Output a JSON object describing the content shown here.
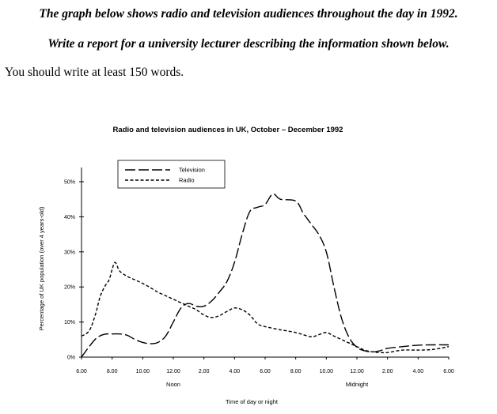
{
  "task": {
    "line1": "The graph below shows radio and television audiences throughout the day in 1992.",
    "line2": "Write a report for a university lecturer describing the information shown below.",
    "word_count": "You should write at least 150 words."
  },
  "chart_data": {
    "type": "line",
    "title": "Radio and television audiences in UK, October – December 1992",
    "xlabel": "Time of day or night",
    "ylabel": "Percentage of UK population (over 4 years-old)",
    "x_ticks": [
      "6.00",
      "8.00",
      "10.00",
      "12.00",
      "2.00",
      "4.00",
      "6.00",
      "8.00",
      "10.00",
      "12.00",
      "2.00",
      "4.00",
      "6.00"
    ],
    "x_sublabels": [
      {
        "label": "Noon",
        "at": "12.00 noon"
      },
      {
        "label": "Midnight",
        "at": "12.00 midnight"
      }
    ],
    "xlim": [
      0,
      24
    ],
    "y_ticks": [
      "0%",
      "10%",
      "20%",
      "30%",
      "40%",
      "50%"
    ],
    "ylim": [
      0,
      50
    ],
    "x_units": "hours after 6.00 am",
    "legend": {
      "placement": "top-left",
      "entries": [
        "Television",
        "Radio"
      ]
    },
    "series": [
      {
        "name": "Television",
        "style": "long-dash",
        "points": [
          [
            0,
            0
          ],
          [
            0.5,
            3
          ],
          [
            1,
            5.5
          ],
          [
            1.5,
            6.5
          ],
          [
            2,
            6.6
          ],
          [
            2.5,
            6.6
          ],
          [
            3,
            6.2
          ],
          [
            3.5,
            5
          ],
          [
            4,
            4.2
          ],
          [
            4.5,
            3.8
          ],
          [
            5,
            4.2
          ],
          [
            5.5,
            6
          ],
          [
            6,
            10
          ],
          [
            6.5,
            14
          ],
          [
            7,
            15.3
          ],
          [
            7.5,
            14.5
          ],
          [
            8,
            14.5
          ],
          [
            8.5,
            16
          ],
          [
            9,
            18.5
          ],
          [
            9.5,
            21.5
          ],
          [
            10,
            27
          ],
          [
            10.5,
            35
          ],
          [
            11,
            41.5
          ],
          [
            11.5,
            42.7
          ],
          [
            12,
            43.5
          ],
          [
            12.5,
            46.5
          ],
          [
            13,
            45
          ],
          [
            14,
            44.5
          ],
          [
            14.5,
            41
          ],
          [
            15,
            38
          ],
          [
            15.5,
            35
          ],
          [
            16,
            30
          ],
          [
            16.5,
            20
          ],
          [
            17,
            11
          ],
          [
            17.5,
            5.5
          ],
          [
            18,
            2.8
          ],
          [
            18.5,
            1.8
          ],
          [
            19,
            1.5
          ],
          [
            19.5,
            1.8
          ],
          [
            20,
            2.5
          ],
          [
            21,
            3
          ],
          [
            22,
            3.4
          ],
          [
            23,
            3.5
          ],
          [
            24,
            3.5
          ]
        ]
      },
      {
        "name": "Radio",
        "style": "short-dash",
        "points": [
          [
            0,
            6
          ],
          [
            0.5,
            7.5
          ],
          [
            0.9,
            12
          ],
          [
            1.2,
            17
          ],
          [
            1.5,
            20
          ],
          [
            1.8,
            22
          ],
          [
            2,
            25
          ],
          [
            2.2,
            27
          ],
          [
            2.5,
            24.5
          ],
          [
            3,
            23
          ],
          [
            3.5,
            22
          ],
          [
            4,
            21
          ],
          [
            4.5,
            19.8
          ],
          [
            5,
            18.5
          ],
          [
            5.5,
            17.5
          ],
          [
            6,
            16.5
          ],
          [
            6.5,
            15.5
          ],
          [
            7,
            14.5
          ],
          [
            7.5,
            13.5
          ],
          [
            8,
            12
          ],
          [
            8.5,
            11.3
          ],
          [
            9,
            11.8
          ],
          [
            9.5,
            13
          ],
          [
            10,
            14
          ],
          [
            10.5,
            13.5
          ],
          [
            11,
            12
          ],
          [
            11.5,
            9.5
          ],
          [
            12,
            8.7
          ],
          [
            13,
            7.8
          ],
          [
            14,
            7
          ],
          [
            15,
            5.8
          ],
          [
            15.5,
            6.4
          ],
          [
            16,
            7
          ],
          [
            16.5,
            6
          ],
          [
            17,
            5
          ],
          [
            17.5,
            4
          ],
          [
            18,
            3
          ],
          [
            18.5,
            2
          ],
          [
            19,
            1.5
          ],
          [
            19.5,
            1.3
          ],
          [
            20,
            1.3
          ],
          [
            21,
            2
          ],
          [
            22,
            2
          ],
          [
            23,
            2.2
          ],
          [
            24,
            3
          ]
        ]
      }
    ]
  }
}
